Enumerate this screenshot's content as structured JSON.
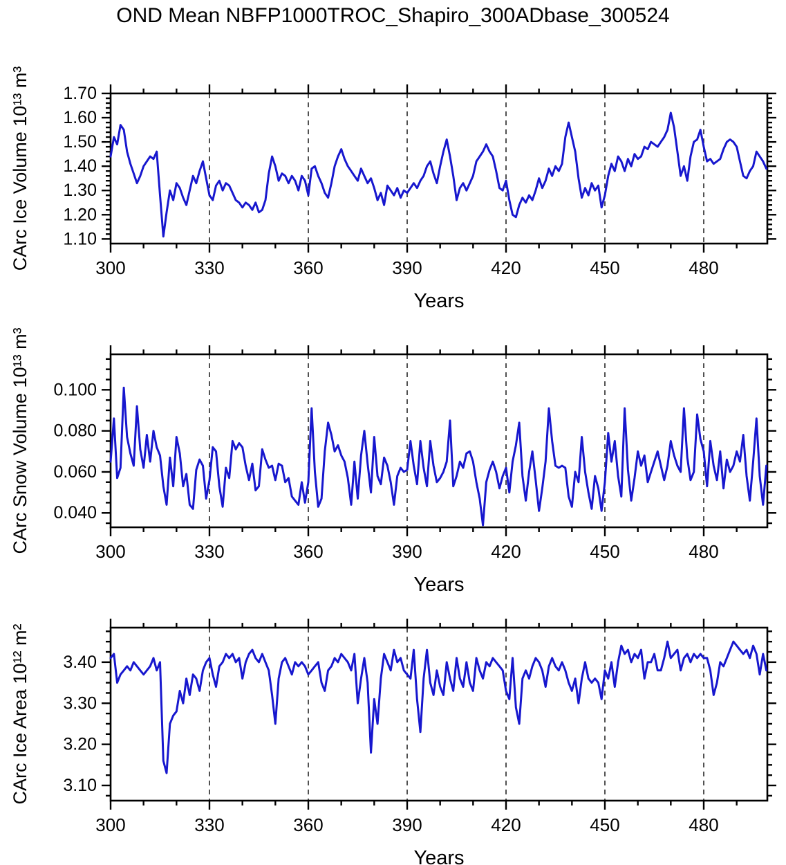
{
  "title": "OND Mean NBFP1000TROC_Shapiro_300ADbase_300524",
  "line_color": "#1717CE",
  "axis_color": "#000000",
  "grid_color": "#333333",
  "chart_data": [
    {
      "type": "line",
      "title": "",
      "ylabel": "CArc Ice Volume 10¹³ m³",
      "xlabel": "Years",
      "x_start": 300,
      "x_step": 1,
      "xlim": [
        300,
        499.3
      ],
      "ylim": [
        1.081,
        1.7
      ],
      "yticks": [
        1.1,
        1.2,
        1.3,
        1.4,
        1.5,
        1.6,
        1.7
      ],
      "ytick_labels": [
        "1.10",
        "1.20",
        "1.30",
        "1.40",
        "1.50",
        "1.60",
        "1.70"
      ],
      "y_minor_step": 0.02,
      "xticks": [
        300,
        330,
        360,
        390,
        420,
        450,
        480
      ],
      "xtick_labels": [
        "300",
        "330",
        "360",
        "390",
        "420",
        "450",
        "480"
      ],
      "x_minor_step": 10,
      "grid_x": [
        330,
        360,
        390,
        420,
        450,
        480
      ],
      "values": [
        1.44,
        1.52,
        1.49,
        1.57,
        1.55,
        1.46,
        1.41,
        1.37,
        1.33,
        1.36,
        1.4,
        1.42,
        1.44,
        1.43,
        1.46,
        1.28,
        1.11,
        1.21,
        1.3,
        1.26,
        1.33,
        1.31,
        1.27,
        1.24,
        1.3,
        1.36,
        1.33,
        1.38,
        1.42,
        1.35,
        1.28,
        1.26,
        1.32,
        1.34,
        1.3,
        1.33,
        1.32,
        1.29,
        1.26,
        1.25,
        1.23,
        1.25,
        1.24,
        1.22,
        1.25,
        1.21,
        1.22,
        1.26,
        1.37,
        1.44,
        1.4,
        1.34,
        1.37,
        1.36,
        1.33,
        1.36,
        1.34,
        1.3,
        1.36,
        1.34,
        1.28,
        1.39,
        1.4,
        1.36,
        1.33,
        1.29,
        1.27,
        1.33,
        1.4,
        1.44,
        1.47,
        1.43,
        1.4,
        1.38,
        1.36,
        1.34,
        1.39,
        1.36,
        1.33,
        1.35,
        1.31,
        1.26,
        1.29,
        1.24,
        1.32,
        1.3,
        1.28,
        1.31,
        1.27,
        1.3,
        1.29,
        1.31,
        1.33,
        1.31,
        1.34,
        1.36,
        1.4,
        1.42,
        1.37,
        1.33,
        1.4,
        1.46,
        1.51,
        1.44,
        1.36,
        1.26,
        1.31,
        1.33,
        1.3,
        1.33,
        1.36,
        1.42,
        1.44,
        1.46,
        1.49,
        1.46,
        1.44,
        1.38,
        1.31,
        1.3,
        1.34,
        1.26,
        1.2,
        1.19,
        1.24,
        1.27,
        1.25,
        1.28,
        1.26,
        1.3,
        1.35,
        1.31,
        1.34,
        1.39,
        1.36,
        1.4,
        1.38,
        1.41,
        1.52,
        1.58,
        1.52,
        1.46,
        1.35,
        1.27,
        1.31,
        1.28,
        1.33,
        1.3,
        1.32,
        1.23,
        1.28,
        1.36,
        1.41,
        1.38,
        1.44,
        1.42,
        1.38,
        1.43,
        1.4,
        1.45,
        1.43,
        1.44,
        1.48,
        1.47,
        1.5,
        1.49,
        1.48,
        1.5,
        1.52,
        1.55,
        1.62,
        1.56,
        1.46,
        1.36,
        1.4,
        1.34,
        1.44,
        1.5,
        1.51,
        1.55,
        1.48,
        1.42,
        1.43,
        1.41,
        1.42,
        1.43,
        1.47,
        1.5,
        1.51,
        1.5,
        1.48,
        1.42,
        1.36,
        1.35,
        1.38,
        1.4,
        1.46,
        1.44,
        1.42,
        1.39
      ]
    },
    {
      "type": "line",
      "title": "",
      "ylabel": "CArc Snow Volume 10¹³ m³",
      "xlabel": "Years",
      "x_start": 300,
      "x_step": 1,
      "xlim": [
        300,
        499.3
      ],
      "ylim": [
        0.033,
        0.1173
      ],
      "yticks": [
        0.04,
        0.06,
        0.08,
        0.1
      ],
      "ytick_labels": [
        "0.040",
        "0.060",
        "0.080",
        "0.100"
      ],
      "y_minor_step": 0.005,
      "xticks": [
        300,
        330,
        360,
        390,
        420,
        450,
        480
      ],
      "xtick_labels": [
        "300",
        "330",
        "360",
        "390",
        "420",
        "450",
        "480"
      ],
      "x_minor_step": 10,
      "grid_x": [
        330,
        360,
        390,
        420,
        450,
        480
      ],
      "values": [
        0.065,
        0.086,
        0.057,
        0.062,
        0.101,
        0.077,
        0.069,
        0.063,
        0.092,
        0.071,
        0.062,
        0.078,
        0.065,
        0.08,
        0.072,
        0.068,
        0.053,
        0.044,
        0.067,
        0.053,
        0.077,
        0.069,
        0.053,
        0.059,
        0.044,
        0.042,
        0.061,
        0.066,
        0.063,
        0.047,
        0.056,
        0.072,
        0.07,
        0.053,
        0.043,
        0.062,
        0.057,
        0.075,
        0.071,
        0.074,
        0.072,
        0.063,
        0.056,
        0.064,
        0.051,
        0.053,
        0.071,
        0.066,
        0.062,
        0.063,
        0.056,
        0.064,
        0.063,
        0.055,
        0.057,
        0.048,
        0.046,
        0.044,
        0.055,
        0.045,
        0.055,
        0.091,
        0.06,
        0.043,
        0.047,
        0.07,
        0.084,
        0.078,
        0.07,
        0.073,
        0.068,
        0.065,
        0.057,
        0.044,
        0.065,
        0.047,
        0.068,
        0.08,
        0.064,
        0.05,
        0.077,
        0.058,
        0.054,
        0.067,
        0.063,
        0.055,
        0.044,
        0.058,
        0.062,
        0.06,
        0.061,
        0.075,
        0.063,
        0.054,
        0.075,
        0.062,
        0.053,
        0.075,
        0.063,
        0.055,
        0.057,
        0.06,
        0.065,
        0.085,
        0.053,
        0.058,
        0.065,
        0.062,
        0.069,
        0.07,
        0.065,
        0.055,
        0.047,
        0.034,
        0.055,
        0.061,
        0.065,
        0.06,
        0.052,
        0.058,
        0.062,
        0.05,
        0.065,
        0.073,
        0.084,
        0.058,
        0.046,
        0.06,
        0.07,
        0.056,
        0.041,
        0.052,
        0.065,
        0.091,
        0.075,
        0.063,
        0.062,
        0.063,
        0.062,
        0.048,
        0.043,
        0.06,
        0.055,
        0.077,
        0.06,
        0.05,
        0.042,
        0.058,
        0.052,
        0.041,
        0.055,
        0.079,
        0.065,
        0.075,
        0.058,
        0.048,
        0.091,
        0.061,
        0.046,
        0.057,
        0.07,
        0.063,
        0.068,
        0.055,
        0.06,
        0.065,
        0.07,
        0.063,
        0.056,
        0.063,
        0.075,
        0.068,
        0.063,
        0.06,
        0.091,
        0.067,
        0.056,
        0.06,
        0.088,
        0.076,
        0.07,
        0.053,
        0.075,
        0.063,
        0.056,
        0.07,
        0.052,
        0.066,
        0.06,
        0.063,
        0.07,
        0.065,
        0.078,
        0.058,
        0.046,
        0.065,
        0.086,
        0.058,
        0.044,
        0.063
      ]
    },
    {
      "type": "line",
      "title": "",
      "ylabel": "CArc Ice Area 10¹² m²",
      "xlabel": "Years",
      "x_start": 300,
      "x_step": 1,
      "xlim": [
        300,
        499.3
      ],
      "ylim": [
        3.063,
        3.484
      ],
      "yticks": [
        3.1,
        3.2,
        3.3,
        3.4
      ],
      "ytick_labels": [
        "3.10",
        "3.20",
        "3.30",
        "3.40"
      ],
      "y_minor_step": 0.025,
      "xticks": [
        300,
        330,
        360,
        390,
        420,
        450,
        480
      ],
      "xtick_labels": [
        "300",
        "330",
        "360",
        "390",
        "420",
        "450",
        "480"
      ],
      "x_minor_step": 10,
      "grid_x": [
        330,
        360,
        390,
        420,
        450,
        480
      ],
      "values": [
        3.41,
        3.42,
        3.35,
        3.37,
        3.38,
        3.39,
        3.38,
        3.4,
        3.39,
        3.38,
        3.37,
        3.38,
        3.39,
        3.41,
        3.38,
        3.4,
        3.16,
        3.13,
        3.25,
        3.27,
        3.28,
        3.33,
        3.3,
        3.36,
        3.32,
        3.37,
        3.36,
        3.33,
        3.38,
        3.4,
        3.41,
        3.37,
        3.34,
        3.39,
        3.4,
        3.42,
        3.41,
        3.42,
        3.4,
        3.41,
        3.36,
        3.4,
        3.42,
        3.43,
        3.41,
        3.4,
        3.42,
        3.4,
        3.38,
        3.32,
        3.25,
        3.36,
        3.4,
        3.41,
        3.39,
        3.37,
        3.4,
        3.39,
        3.4,
        3.39,
        3.37,
        3.38,
        3.39,
        3.4,
        3.35,
        3.33,
        3.38,
        3.39,
        3.41,
        3.4,
        3.42,
        3.41,
        3.4,
        3.38,
        3.42,
        3.3,
        3.36,
        3.41,
        3.35,
        3.18,
        3.31,
        3.25,
        3.36,
        3.42,
        3.4,
        3.38,
        3.43,
        3.4,
        3.41,
        3.38,
        3.37,
        3.36,
        3.43,
        3.31,
        3.23,
        3.36,
        3.43,
        3.35,
        3.32,
        3.38,
        3.34,
        3.32,
        3.4,
        3.36,
        3.33,
        3.41,
        3.36,
        3.34,
        3.4,
        3.35,
        3.33,
        3.41,
        3.38,
        3.36,
        3.4,
        3.39,
        3.41,
        3.4,
        3.39,
        3.38,
        3.33,
        3.31,
        3.41,
        3.29,
        3.25,
        3.36,
        3.38,
        3.36,
        3.39,
        3.41,
        3.4,
        3.38,
        3.34,
        3.39,
        3.41,
        3.39,
        3.38,
        3.4,
        3.38,
        3.35,
        3.33,
        3.36,
        3.3,
        3.36,
        3.4,
        3.36,
        3.35,
        3.36,
        3.35,
        3.31,
        3.38,
        3.36,
        3.4,
        3.34,
        3.4,
        3.44,
        3.42,
        3.43,
        3.4,
        3.42,
        3.41,
        3.43,
        3.36,
        3.4,
        3.4,
        3.42,
        3.38,
        3.38,
        3.41,
        3.45,
        3.41,
        3.42,
        3.43,
        3.38,
        3.41,
        3.42,
        3.4,
        3.42,
        3.41,
        3.42,
        3.41,
        3.41,
        3.38,
        3.32,
        3.35,
        3.4,
        3.39,
        3.41,
        3.43,
        3.45,
        3.44,
        3.43,
        3.42,
        3.43,
        3.41,
        3.44,
        3.42,
        3.37,
        3.42,
        3.38
      ]
    }
  ]
}
